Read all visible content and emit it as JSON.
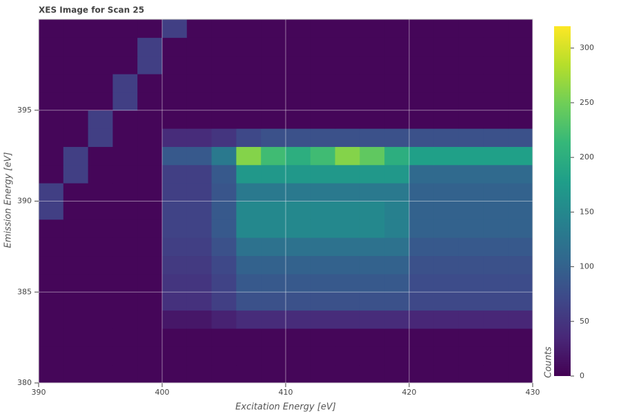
{
  "chart_data": {
    "type": "heatmap",
    "title": "XES Image for Scan 25",
    "x_label": "Excitation Energy [eV]",
    "y_label": "Emission Energy [eV]",
    "colorbar_label": "Counts",
    "colormap": "viridis",
    "x": [
      391,
      393,
      395,
      397,
      399,
      401,
      403,
      405,
      407,
      409,
      411,
      413,
      415,
      417,
      419,
      421,
      423,
      425,
      427,
      429
    ],
    "y": [
      380.5,
      381.5,
      382.5,
      383.5,
      384.5,
      385.5,
      386.5,
      387.5,
      388.5,
      389.5,
      390.5,
      391.5,
      392.5,
      393.5,
      394.5,
      395.5,
      396.5,
      397.5,
      398.5,
      399.5
    ],
    "z": [
      [
        5,
        5,
        5,
        5,
        5,
        5,
        5,
        5,
        5,
        5,
        5,
        5,
        5,
        5,
        5,
        5,
        5,
        5,
        5,
        5
      ],
      [
        5,
        5,
        5,
        5,
        5,
        5,
        5,
        5,
        5,
        5,
        5,
        5,
        5,
        5,
        5,
        5,
        5,
        5,
        5,
        5
      ],
      [
        5,
        5,
        5,
        5,
        5,
        5,
        5,
        5,
        5,
        5,
        5,
        5,
        5,
        5,
        5,
        5,
        5,
        5,
        5,
        5
      ],
      [
        5,
        5,
        5,
        5,
        5,
        20,
        20,
        30,
        40,
        40,
        40,
        40,
        40,
        40,
        40,
        35,
        35,
        35,
        35,
        35
      ],
      [
        5,
        5,
        5,
        5,
        5,
        45,
        45,
        60,
        80,
        80,
        80,
        80,
        80,
        80,
        80,
        70,
        70,
        70,
        70,
        70
      ],
      [
        5,
        5,
        5,
        5,
        5,
        50,
        50,
        65,
        90,
        90,
        90,
        90,
        90,
        90,
        90,
        75,
        75,
        75,
        75,
        75
      ],
      [
        5,
        5,
        5,
        5,
        5,
        55,
        55,
        70,
        100,
        100,
        100,
        100,
        100,
        100,
        100,
        80,
        80,
        80,
        80,
        80
      ],
      [
        5,
        5,
        5,
        5,
        5,
        60,
        60,
        80,
        120,
        120,
        120,
        120,
        120,
        120,
        120,
        90,
        90,
        90,
        90,
        90
      ],
      [
        5,
        5,
        5,
        5,
        5,
        65,
        65,
        90,
        150,
        150,
        150,
        150,
        150,
        150,
        140,
        100,
        100,
        100,
        100,
        100
      ],
      [
        60,
        5,
        5,
        5,
        5,
        65,
        65,
        90,
        150,
        150,
        150,
        150,
        150,
        150,
        140,
        100,
        100,
        100,
        100,
        100
      ],
      [
        60,
        5,
        5,
        5,
        5,
        60,
        60,
        85,
        130,
        130,
        130,
        130,
        130,
        130,
        130,
        100,
        100,
        100,
        100,
        100
      ],
      [
        5,
        60,
        5,
        5,
        5,
        60,
        60,
        90,
        170,
        170,
        170,
        170,
        170,
        170,
        170,
        110,
        110,
        110,
        110,
        110
      ],
      [
        5,
        60,
        5,
        5,
        5,
        90,
        90,
        130,
        260,
        220,
        200,
        220,
        260,
        240,
        200,
        180,
        180,
        180,
        180,
        180
      ],
      [
        5,
        5,
        60,
        5,
        5,
        40,
        40,
        50,
        70,
        80,
        80,
        80,
        80,
        80,
        80,
        80,
        80,
        80,
        80,
        80
      ],
      [
        5,
        5,
        60,
        5,
        5,
        5,
        5,
        5,
        5,
        5,
        5,
        5,
        5,
        5,
        5,
        5,
        5,
        5,
        5,
        5
      ],
      [
        5,
        5,
        5,
        60,
        5,
        5,
        5,
        5,
        5,
        5,
        5,
        5,
        5,
        5,
        5,
        5,
        5,
        5,
        5,
        5
      ],
      [
        5,
        5,
        5,
        60,
        5,
        5,
        5,
        5,
        5,
        5,
        5,
        5,
        5,
        5,
        5,
        5,
        5,
        5,
        5,
        5
      ],
      [
        5,
        5,
        5,
        5,
        60,
        5,
        5,
        5,
        5,
        5,
        5,
        5,
        5,
        5,
        5,
        5,
        5,
        5,
        5,
        5
      ],
      [
        5,
        5,
        5,
        5,
        60,
        5,
        5,
        5,
        5,
        5,
        5,
        5,
        5,
        5,
        5,
        5,
        5,
        5,
        5,
        5
      ],
      [
        5,
        5,
        5,
        5,
        5,
        60,
        5,
        5,
        5,
        5,
        5,
        5,
        5,
        5,
        5,
        5,
        5,
        5,
        5,
        5
      ]
    ],
    "xlim": [
      390,
      430
    ],
    "ylim": [
      380,
      400
    ],
    "xticks": [
      390,
      400,
      410,
      420,
      430
    ],
    "yticks": [
      380,
      385,
      390,
      395
    ],
    "clim": [
      0,
      320
    ],
    "cticks": [
      0,
      50,
      100,
      150,
      200,
      250,
      300
    ],
    "grid": true
  }
}
